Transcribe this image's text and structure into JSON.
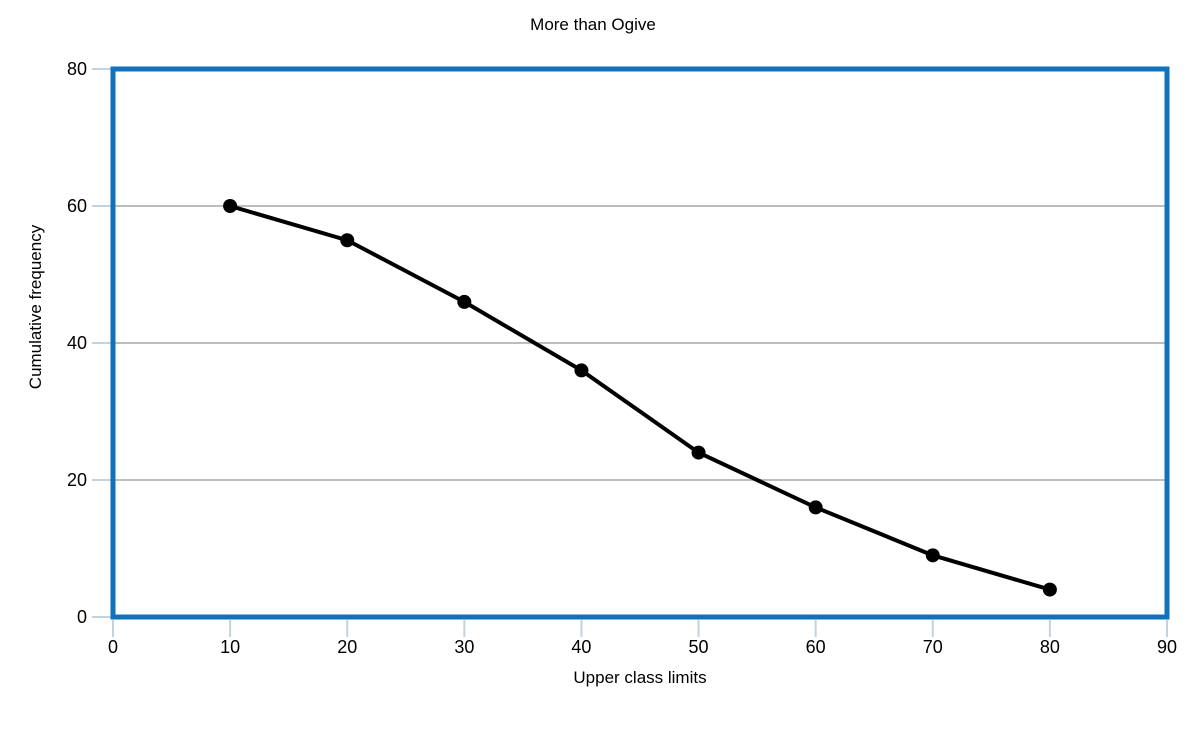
{
  "chart_data": {
    "type": "line",
    "title": "More than Ogive",
    "xlabel": "Upper class limits",
    "ylabel": "Cumulative frequency",
    "series": [
      {
        "name": "cumulative-frequency",
        "x": [
          10,
          20,
          30,
          40,
          50,
          60,
          70,
          80
        ],
        "y": [
          60,
          55,
          46,
          36,
          24,
          16,
          9,
          4
        ]
      }
    ],
    "xlim": [
      0,
      90
    ],
    "ylim": [
      0,
      80
    ],
    "x_ticks": [
      0,
      10,
      20,
      30,
      40,
      50,
      60,
      70,
      80,
      90
    ],
    "y_ticks": [
      0,
      20,
      40,
      60,
      80
    ],
    "grid": "horizontal-only",
    "legend": "none",
    "marker": "circle",
    "line_width": 4,
    "marker_radius": 7,
    "colors": {
      "line": "#000000",
      "marker": "#000000",
      "frame": "#0f72ba",
      "gridline": "#bdbdbd",
      "tick": "#c2d2e0",
      "text": "#000000",
      "background": "#ffffff"
    }
  }
}
